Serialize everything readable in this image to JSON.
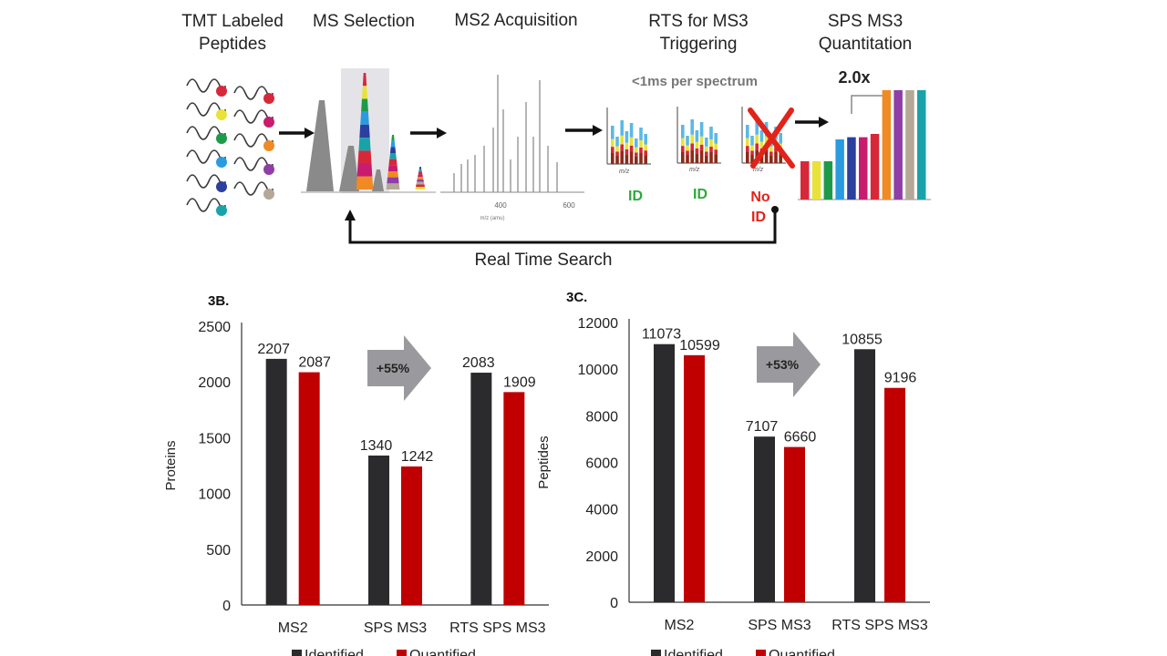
{
  "workflow": {
    "steps": [
      {
        "line1": "TMT Labeled",
        "line2": "Peptides"
      },
      {
        "line1": "MS Selection",
        "line2": ""
      },
      {
        "line1": "MS2 Acquisition",
        "line2": ""
      },
      {
        "line1": "RTS for MS3",
        "line2": "Triggering"
      },
      {
        "line1": "SPS MS3",
        "line2": "Quantitation"
      }
    ],
    "rts_speed": "<1ms per spectrum",
    "fold_label": "2.0x",
    "ms2_ticks": [
      "400",
      "600"
    ],
    "ms2_axis_label": "m/z (amu)",
    "mini_axis_label": "m/z",
    "id_labels": [
      "ID",
      "ID"
    ],
    "noid_line1": "No",
    "noid_line2": "ID",
    "loop_label": "Real Time Search",
    "colors": {
      "id_green": "#2eaa3c",
      "noid_red": "#e2231a",
      "arrow": "#111111"
    },
    "tag_colors": [
      "#d62839",
      "#e8e23a",
      "#1e9a4a",
      "#2b9be0",
      "#2b3f9e",
      "#19a3a8",
      "#d62839",
      "#c81c6e",
      "#f08a24",
      "#8e3ea6",
      "#b4a896"
    ],
    "quant_bar_colors": [
      "#d62839",
      "#e8e23a",
      "#1e9a4a",
      "#2b9be0",
      "#2b3f9e",
      "#c81c6e",
      "#d62839",
      "#f08a24",
      "#8e3ea6",
      "#b4a896",
      "#19a3a8"
    ],
    "quant_bar_values": [
      0.35,
      0.35,
      0.35,
      0.55,
      0.57,
      0.57,
      0.6,
      1.0,
      1.0,
      1.0,
      1.0
    ]
  },
  "chart_data": [
    {
      "type": "bar",
      "panel_label": "3B.",
      "categories": [
        "MS2",
        "SPS MS3",
        "RTS SPS MS3"
      ],
      "series": [
        {
          "name": "Identified",
          "values": [
            2207,
            1340,
            2083
          ],
          "color": "#2b2b2e"
        },
        {
          "name": "Quantified",
          "values": [
            2087,
            1242,
            1909
          ],
          "color": "#c00000"
        }
      ],
      "ylabel": "Proteins",
      "ylim": [
        0,
        2500
      ],
      "yticks": [
        0,
        500,
        1000,
        1500,
        2000,
        2500
      ],
      "improvement": "+55%",
      "legend": "bottom"
    },
    {
      "type": "bar",
      "panel_label": "3C.",
      "categories": [
        "MS2",
        "SPS MS3",
        "RTS SPS MS3"
      ],
      "series": [
        {
          "name": "Identified",
          "values": [
            11073,
            7107,
            10855
          ],
          "color": "#2b2b2e"
        },
        {
          "name": "Quantified",
          "values": [
            10599,
            6660,
            9196
          ],
          "color": "#c00000"
        }
      ],
      "ylabel": "Peptides",
      "ylim": [
        0,
        12000
      ],
      "yticks": [
        0,
        2000,
        4000,
        6000,
        8000,
        10000,
        12000
      ],
      "improvement": "+53%",
      "legend": "bottom"
    }
  ]
}
